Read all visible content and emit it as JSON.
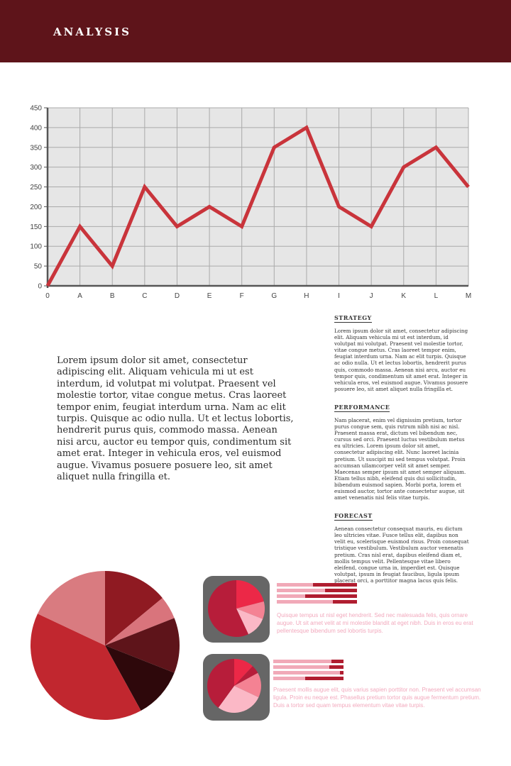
{
  "header": {
    "title": "ANALYSIS"
  },
  "chart_data": {
    "type": "line",
    "categories": [
      "0",
      "A",
      "B",
      "C",
      "D",
      "E",
      "F",
      "G",
      "H",
      "I",
      "J",
      "K",
      "L",
      "M"
    ],
    "values": [
      0,
      150,
      50,
      250,
      150,
      200,
      150,
      350,
      400,
      200,
      150,
      300,
      350,
      250
    ],
    "ylim": [
      0,
      450
    ],
    "yticks": [
      0,
      50,
      100,
      150,
      200,
      250,
      300,
      350,
      400,
      450
    ],
    "grid": true,
    "colors": {
      "line": "#c9343b",
      "plot_bg": "#e6e6e6",
      "grid": "#aaaaaa",
      "axis": "#555555"
    }
  },
  "intro": {
    "text": "Lorem ipsum dolor sit amet, consectetur adipiscing elit. Aliquam vehicula mi ut est interdum, id volutpat mi volutpat. Praesent vel molestie tortor, vitae congue metus. Cras laoreet tempor enim, feugiat interdum urna. Nam ac elit turpis. Quisque ac odio nulla. Ut et lectus lobortis, hendrerit purus quis, commodo massa. Aenean nisi arcu, auctor eu tempor quis, condimentum sit amet erat. Integer in vehicula eros, vel euismod augue. Vivamus posuere posuere leo, sit amet aliquet nulla fringilla et."
  },
  "sections": [
    {
      "heading": "STRATEGY",
      "body": "Lorem ipsum dolor sit amet, consectetur adipiscing elit. Aliquam vehicula mi ut est interdum, id volutpat mi volutpat. Praesent vel molestie tortor, vitae congue metus. Cras laoreet tempor enim, feugiat interdum urna. Nam ac elit turpis. Quisque ac odio nulla. Ut et lectus lobortis, hendrerit purus quis, commodo massa. Aenean nisi arcu, auctor eu tempor quis, condimentum sit amet erat. Integer in vehicula eros, vel euismod augue. Vivamus posuere posuere leo, sit amet aliquet nulla fringilla et."
    },
    {
      "heading": "PERFORMANCE",
      "body": "Nam placerat, enim vel dignissim pretium, tortor purus congue sem, quis rutrum nibh nisi ac nisl. Praesent massa erat, dictum vel bibendum nec, cursus sed orci. Praesent luctus vestibulum metus eu ultricies. Lorem ipsum dolor sit amet, consectetur adipiscing elit. Nunc laoreet lacinia pretium. Ut suscipit mi sed tempus volutpat. Proin accumsan ullamcorper velit sit amet semper. Maecenas semper ipsum sit amet semper aliquam. Etiam tellus nibh, eleifend quis dui sollicitudin, bibendum euismod sapien. Morbi porta, lorem et euismod auctor, tortor ante consectetur augue, sit amet venenatis nisl felis vitae turpis."
    },
    {
      "heading": "FORECAST",
      "body": "Aenean consectetur consequat mauris, eu dictum leo ultricies vitae. Fusce tellus elit, dapibus non velit eu, scelerisque euismod risus. Proin consequat tristique vestibulum. Vestibulum auctor venenatis pretium. Cras nisl erat, dapibus eleifend diam et, mollis tempus velit. Pellentesque vitae libero eleifend, congue urna in, imperdiet est. Quisque volutpat, ipsum in feugiat faucibus, ligula ipsum placerat orci, a porttitor magna lacus quis felis."
    }
  ],
  "big_pie": {
    "values": [
      14,
      5,
      12,
      11,
      40,
      18
    ],
    "colors": [
      "#8f1a22",
      "#d9747c",
      "#5e141a",
      "#2e080b",
      "#c1272f",
      "#d97b80"
    ]
  },
  "widgets": [
    {
      "pie_values": [
        21,
        10,
        12,
        57
      ],
      "pie_colors": [
        "#ec2847",
        "#f48293",
        "#fbb8c6",
        "#b71d3a"
      ],
      "bars": [
        0.55,
        0.4,
        0.65,
        0.3
      ],
      "bar_colors": {
        "light": "#f1a9b8",
        "dark": "#b01d30"
      },
      "note": "Quisque tempus ut nisl eget hendrerit. Sed nec malesuada felis, quis ornare augue. Ut sit amet velit at mi molestie blandit at eget nibh. Duis in eros eu erat pellentesque bibendum sed lobortis turpis."
    },
    {
      "pie_values": [
        12,
        5,
        15,
        28,
        40
      ],
      "pie_colors": [
        "#ec2847",
        "#b71d3a",
        "#f48293",
        "#fbb8c6",
        "#b71d3a"
      ],
      "bars": [
        0.17,
        0.2,
        0.05,
        0.55
      ],
      "bar_colors": {
        "light": "#f1a9b8",
        "dark": "#b01d30"
      },
      "note": "Praesent mollis augue elit, quis varius sapien porttitor non. Praesent vel accumsan ligula. Proin eu neque est. Phasellus pretium tortor quis augue fermentum pretium. Duis a tortor sed quam tempus elementum vitae vitae turpis."
    }
  ]
}
